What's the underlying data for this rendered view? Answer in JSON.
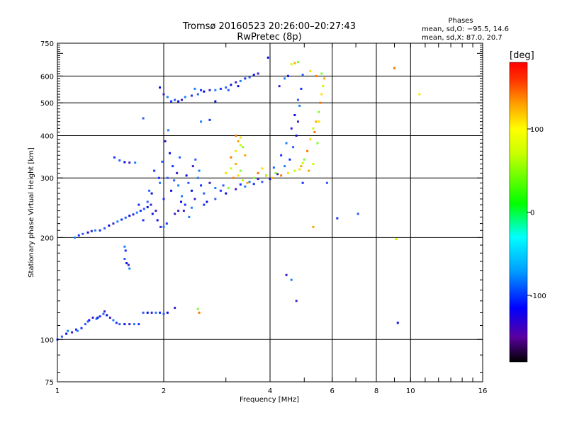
{
  "chart_data": {
    "type": "scatter",
    "title": "Tromsø 20160523 20:26:00–20:27:43",
    "subtitle": "RwPretec (8p)",
    "xlabel": "Frequency [MHz]",
    "ylabel": "Stationary phase Virtual Height [km]",
    "x_scale": "log",
    "y_scale": "log",
    "xlim": [
      1,
      16
    ],
    "ylim": [
      75,
      750
    ],
    "x_ticks": [
      1,
      2,
      4,
      6,
      8,
      10,
      16
    ],
    "x_tick_labels": [
      "1",
      "2",
      "4",
      "6",
      "8",
      "10",
      "16"
    ],
    "y_ticks": [
      75,
      100,
      200,
      300,
      400,
      500,
      600,
      750
    ],
    "y_tick_labels": [
      "75",
      "100",
      "200",
      "300",
      "400",
      "500",
      "600",
      "750"
    ],
    "grid_x": [
      2,
      4,
      6,
      8,
      10
    ],
    "grid_y": [
      100,
      200,
      300,
      400,
      500,
      600
    ],
    "grid": true,
    "legend": {
      "title": "Phases",
      "lines": [
        "mean, sd,O: −95.5, 14.6",
        "mean, sd,X:  87.0, 20.7"
      ],
      "placement": "top-right"
    },
    "colorbar": {
      "label": "[deg]",
      "range": [
        -180,
        180
      ],
      "ticks": [
        100,
        0,
        -100
      ],
      "tick_labels": [
        "100",
        "0",
        "-100"
      ],
      "stops": [
        {
          "v": -180,
          "color": "#000000"
        },
        {
          "v": -150,
          "color": "#5a00a0"
        },
        {
          "v": -115,
          "color": "#0000ff"
        },
        {
          "v": -70,
          "color": "#00a0ff"
        },
        {
          "v": -30,
          "color": "#00ffff"
        },
        {
          "v": 10,
          "color": "#00ff00"
        },
        {
          "v": 70,
          "color": "#c8ff00"
        },
        {
          "v": 100,
          "color": "#ffff00"
        },
        {
          "v": 130,
          "color": "#ffa000"
        },
        {
          "v": 160,
          "color": "#ff3000"
        },
        {
          "v": 180,
          "color": "#ff0000"
        }
      ]
    },
    "series": [
      {
        "points": [
          [
            1.0,
            100
          ],
          [
            1.03,
            102
          ],
          [
            1.06,
            104
          ],
          [
            1.1,
            105
          ],
          [
            1.14,
            106
          ],
          [
            1.17,
            108
          ],
          [
            1.2,
            111
          ],
          [
            1.23,
            114
          ],
          [
            1.26,
            116
          ],
          [
            1.29,
            115
          ],
          [
            1.32,
            117
          ],
          [
            1.35,
            119
          ],
          [
            1.38,
            118
          ],
          [
            1.41,
            116
          ],
          [
            1.44,
            114
          ],
          [
            1.47,
            112
          ],
          [
            1.5,
            111
          ],
          [
            1.55,
            111
          ],
          [
            1.6,
            111
          ],
          [
            1.65,
            111
          ],
          [
            1.7,
            111
          ],
          [
            1.22,
            113
          ],
          [
            1.3,
            116
          ],
          [
            1.36,
            121
          ],
          [
            1.07,
            106
          ],
          [
            1.13,
            107
          ],
          [
            1.75,
            120
          ],
          [
            1.8,
            120
          ],
          [
            1.85,
            120
          ],
          [
            1.9,
            120
          ],
          [
            1.95,
            120
          ],
          [
            2.0,
            119
          ],
          [
            2.05,
            120
          ],
          [
            2.15,
            124
          ],
          [
            1.12,
            200
          ],
          [
            1.15,
            203
          ],
          [
            1.18,
            205
          ],
          [
            1.22,
            207
          ],
          [
            1.25,
            209
          ],
          [
            1.28,
            210
          ],
          [
            1.32,
            210
          ],
          [
            1.36,
            213
          ],
          [
            1.4,
            217
          ],
          [
            1.44,
            220
          ],
          [
            1.48,
            223
          ],
          [
            1.52,
            226
          ],
          [
            1.56,
            229
          ],
          [
            1.6,
            232
          ],
          [
            1.64,
            234
          ],
          [
            1.68,
            237
          ],
          [
            1.72,
            240
          ],
          [
            1.76,
            243
          ],
          [
            1.8,
            246
          ],
          [
            1.84,
            250
          ],
          [
            1.55,
            188
          ],
          [
            1.56,
            183
          ],
          [
            1.55,
            173
          ],
          [
            1.57,
            168
          ],
          [
            1.59,
            166
          ],
          [
            1.6,
            162
          ],
          [
            1.45,
            345
          ],
          [
            1.5,
            338
          ],
          [
            1.55,
            334
          ],
          [
            1.6,
            333
          ],
          [
            1.66,
            333
          ],
          [
            1.75,
            225
          ],
          [
            1.8,
            255
          ],
          [
            1.85,
            270
          ],
          [
            1.9,
            240
          ],
          [
            1.95,
            290
          ],
          [
            2.0,
            260
          ],
          [
            2.05,
            300
          ],
          [
            2.1,
            275
          ],
          [
            2.15,
            235
          ],
          [
            2.2,
            285
          ],
          [
            1.88,
            315
          ],
          [
            1.98,
            335
          ],
          [
            2.08,
            355
          ],
          [
            2.18,
            310
          ],
          [
            2.25,
            265
          ],
          [
            2.3,
            250
          ],
          [
            2.35,
            290
          ],
          [
            2.4,
            275
          ],
          [
            2.45,
            260
          ],
          [
            2.5,
            300
          ],
          [
            2.55,
            285
          ],
          [
            2.6,
            270
          ],
          [
            2.65,
            255
          ],
          [
            2.7,
            290
          ],
          [
            2.8,
            280
          ],
          [
            2.9,
            275
          ],
          [
            2.95,
            285
          ],
          [
            1.92,
            225
          ],
          [
            1.96,
            215
          ],
          [
            2.0,
            215
          ],
          [
            2.04,
            220
          ],
          [
            1.82,
            275
          ],
          [
            1.86,
            235
          ],
          [
            2.02,
            385
          ],
          [
            2.06,
            415
          ],
          [
            2.12,
            325
          ],
          [
            2.22,
            345
          ],
          [
            2.32,
            305
          ],
          [
            2.42,
            325
          ],
          [
            2.52,
            315
          ],
          [
            1.94,
            300
          ],
          [
            2.14,
            295
          ],
          [
            2.24,
            255
          ],
          [
            2.28,
            240
          ],
          [
            2.36,
            230
          ],
          [
            1.7,
            250
          ],
          [
            2.46,
            340
          ],
          [
            1.95,
            555
          ],
          [
            2.0,
            530
          ],
          [
            2.05,
            520
          ],
          [
            2.1,
            505
          ],
          [
            2.15,
            510
          ],
          [
            2.2,
            505
          ],
          [
            2.25,
            510
          ],
          [
            2.3,
            520
          ],
          [
            2.4,
            525
          ],
          [
            2.5,
            530
          ],
          [
            2.6,
            540
          ],
          [
            2.7,
            545
          ],
          [
            2.8,
            545
          ],
          [
            2.9,
            550
          ],
          [
            3.0,
            555
          ],
          [
            3.1,
            565
          ],
          [
            3.2,
            575
          ],
          [
            3.3,
            580
          ],
          [
            3.4,
            590
          ],
          [
            3.5,
            595
          ],
          [
            3.6,
            605
          ],
          [
            3.7,
            610
          ],
          [
            2.45,
            550
          ],
          [
            2.55,
            545
          ],
          [
            3.05,
            545
          ],
          [
            3.25,
            560
          ],
          [
            2.2,
            240
          ],
          [
            2.4,
            245
          ],
          [
            2.6,
            250
          ],
          [
            2.8,
            260
          ],
          [
            3.0,
            270
          ],
          [
            3.2,
            278
          ],
          [
            3.4,
            283
          ],
          [
            3.6,
            288
          ],
          [
            3.8,
            292
          ],
          [
            4.0,
            298
          ],
          [
            4.2,
            308
          ],
          [
            4.4,
            325
          ],
          [
            4.55,
            340
          ],
          [
            4.65,
            370
          ],
          [
            4.75,
            400
          ],
          [
            4.8,
            440
          ],
          [
            4.85,
            490
          ],
          [
            4.9,
            550
          ],
          [
            4.8,
            510
          ],
          [
            4.7,
            460
          ],
          [
            4.6,
            420
          ],
          [
            4.45,
            380
          ],
          [
            4.3,
            350
          ],
          [
            4.1,
            322
          ],
          [
            3.9,
            305
          ],
          [
            3.7,
            298
          ],
          [
            3.5,
            292
          ],
          [
            3.3,
            287
          ],
          [
            4.95,
            605
          ],
          [
            4.5,
            600
          ],
          [
            4.25,
            560
          ],
          [
            4.4,
            590
          ],
          [
            6.2,
            228
          ],
          [
            7.1,
            235
          ],
          [
            3.95,
            680
          ],
          [
            4.45,
            155
          ],
          [
            4.6,
            150
          ],
          [
            4.95,
            290
          ],
          [
            5.8,
            290
          ],
          [
            9.2,
            112
          ],
          [
            4.75,
            130
          ],
          [
            2.55,
            440
          ],
          [
            2.7,
            445
          ],
          [
            1.75,
            450
          ],
          [
            2.8,
            505
          ]
        ]
      },
      {
        "points": [
          [
            3.0,
            310
          ],
          [
            3.1,
            320
          ],
          [
            3.2,
            330
          ],
          [
            3.3,
            315
          ],
          [
            3.15,
            300
          ],
          [
            3.25,
            305
          ],
          [
            3.35,
            295
          ],
          [
            3.45,
            290
          ],
          [
            3.05,
            280
          ],
          [
            3.1,
            345
          ],
          [
            3.2,
            360
          ],
          [
            3.3,
            375
          ],
          [
            3.4,
            350
          ],
          [
            3.6,
            300
          ],
          [
            3.7,
            310
          ],
          [
            3.8,
            320
          ],
          [
            3.9,
            305
          ],
          [
            4.05,
            300
          ],
          [
            4.15,
            310
          ],
          [
            4.3,
            305
          ],
          [
            4.5,
            310
          ],
          [
            4.7,
            315
          ],
          [
            4.9,
            325
          ],
          [
            5.0,
            340
          ],
          [
            5.1,
            360
          ],
          [
            5.2,
            390
          ],
          [
            5.3,
            420
          ],
          [
            5.4,
            440
          ],
          [
            5.5,
            470
          ],
          [
            5.55,
            500
          ],
          [
            5.6,
            530
          ],
          [
            5.65,
            560
          ],
          [
            5.7,
            590
          ],
          [
            5.6,
            610
          ],
          [
            5.4,
            600
          ],
          [
            5.2,
            620
          ],
          [
            5.3,
            330
          ],
          [
            5.15,
            315
          ],
          [
            5.45,
            380
          ],
          [
            5.35,
            410
          ],
          [
            5.5,
            440
          ],
          [
            4.6,
            650
          ],
          [
            4.7,
            655
          ],
          [
            4.8,
            660
          ],
          [
            9.0,
            633
          ],
          [
            10.6,
            530
          ],
          [
            9.1,
            198
          ],
          [
            5.3,
            215
          ],
          [
            2.5,
            123
          ],
          [
            2.52,
            120
          ],
          [
            4.85,
            318
          ],
          [
            4.95,
            332
          ],
          [
            3.25,
            385
          ],
          [
            3.35,
            370
          ],
          [
            3.2,
            400
          ],
          [
            3.3,
            395
          ]
        ]
      }
    ]
  }
}
